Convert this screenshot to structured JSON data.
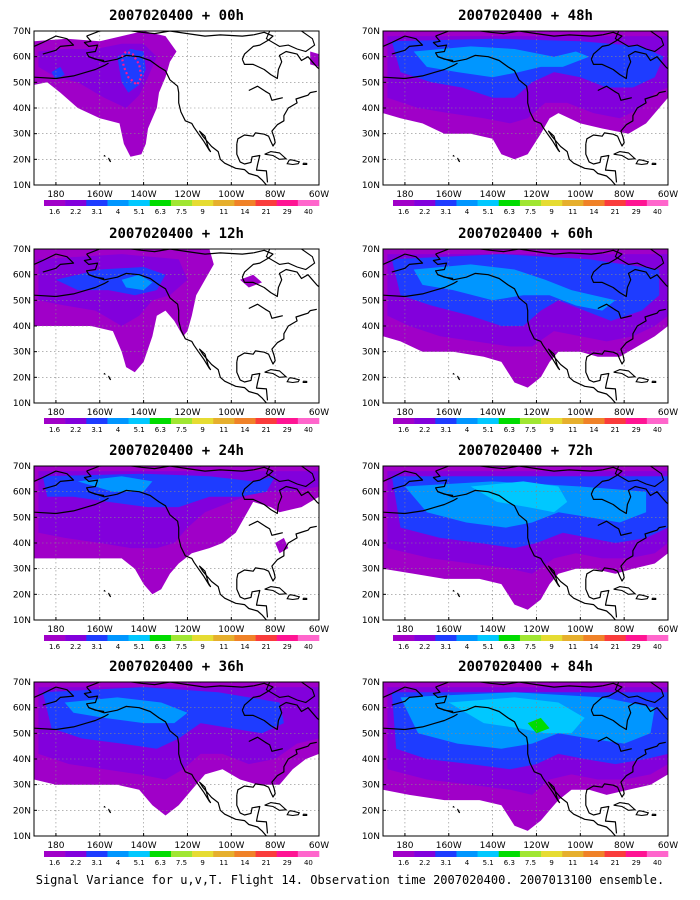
{
  "caption": "Signal Variance for u,v,T. Flight 14. Observation time 2007020400. 2007013100 ensemble.",
  "colorbar": {
    "labels": [
      "1.6",
      "2.2",
      "3.1",
      "4",
      "5.1",
      "6.3",
      "7.5",
      "9",
      "11",
      "14",
      "21",
      "29",
      "40"
    ],
    "colors": [
      "#a000c8",
      "#8200dc",
      "#1e3cff",
      "#0096ff",
      "#00c8ff",
      "#00dc00",
      "#a0e632",
      "#e6dc32",
      "#e6af2d",
      "#f08228",
      "#fa3c3c",
      "#ff1493",
      "#ff66cc"
    ]
  },
  "axes": {
    "lat_ticks": [
      "70N",
      "60N",
      "50N",
      "40N",
      "30N",
      "20N",
      "10N"
    ],
    "lon_ticks": [
      "180",
      "160W",
      "140W",
      "120W",
      "100W",
      "80W",
      "60W"
    ]
  },
  "shade_colors": {
    "purple": "#a000c8",
    "violet": "#8200dc",
    "blue": "#1e3cff",
    "sky": "#0096ff",
    "cyan": "#00c8ff",
    "green": "#00dc00"
  },
  "panels": [
    {
      "title": "2007020400  + 00h",
      "obs_track": true
    },
    {
      "title": "2007020400  + 48h",
      "obs_track": false
    },
    {
      "title": "2007020400  + 12h",
      "obs_track": false
    },
    {
      "title": "2007020400  + 60h",
      "obs_track": false
    },
    {
      "title": "2007020400  + 24h",
      "obs_track": false
    },
    {
      "title": "2007020400  + 72h",
      "obs_track": false
    },
    {
      "title": "2007020400  + 36h",
      "obs_track": false
    },
    {
      "title": "2007020400  + 84h",
      "obs_track": false
    }
  ]
}
